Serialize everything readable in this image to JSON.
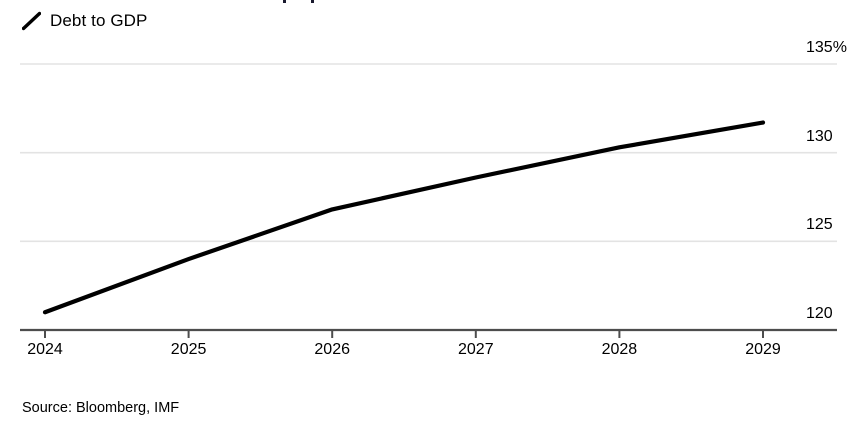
{
  "legend": {
    "label": "Debt to GDP",
    "line_color": "#000000"
  },
  "chart_data": {
    "type": "line",
    "title": "",
    "categories": [
      "2024",
      "2025",
      "2026",
      "2027",
      "2028",
      "2029"
    ],
    "series": [
      {
        "name": "Debt to GDP",
        "color": "#000000",
        "values": [
          121.0,
          124.0,
          126.8,
          128.6,
          130.3,
          131.7
        ]
      }
    ],
    "xlabel": "",
    "ylabel": "",
    "ylim": [
      120,
      135
    ],
    "yticks": [
      120,
      125,
      130,
      135
    ],
    "ytick_labels": [
      "120",
      "125",
      "130",
      "135%"
    ],
    "grid": "horizontal",
    "gridline_color": "#e3e3e3",
    "axis_color": "#4d4d4d",
    "legend_position": "top-left"
  },
  "source": {
    "label": "Source: Bloomberg, IMF"
  }
}
